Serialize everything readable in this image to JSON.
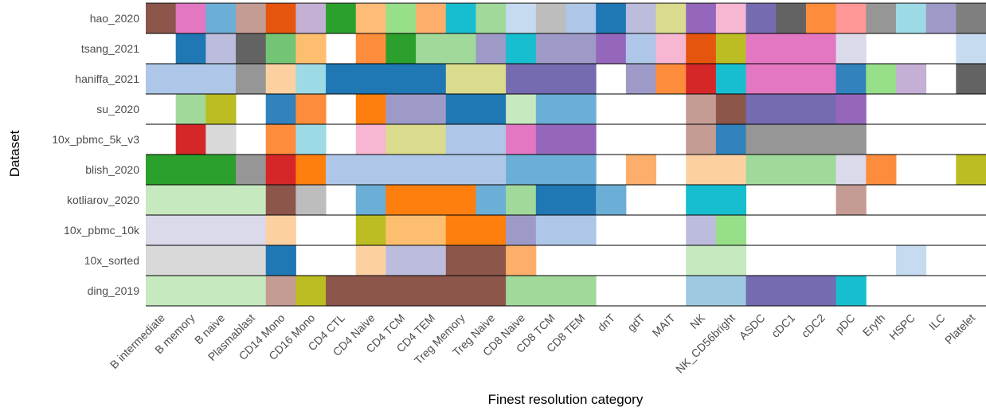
{
  "chart_data": {
    "type": "heatmap",
    "title": "",
    "xlabel": "Finest resolution category",
    "ylabel": "Dataset",
    "columns": [
      "B intermediate",
      "B memory",
      "B naive",
      "Plasmablast",
      "CD14 Mono",
      "CD16 Mono",
      "CD4 CTL",
      "CD4 Naive",
      "CD4 TCM",
      "CD4 TEM",
      "Treg Memory",
      "Treg Naive",
      "CD8 Naive",
      "CD8 TCM",
      "CD8 TEM",
      "dnT",
      "gdT",
      "MAIT",
      "NK",
      "NK_CD56bright",
      "ASDC",
      "cDC1",
      "cDC2",
      "pDC",
      "Eryth",
      "HSPC",
      "ILC",
      "Platelet"
    ],
    "rows": [
      "hao_2020",
      "tsang_2021",
      "haniffa_2021",
      "su_2020",
      "10x_pbmc_5k_v3",
      "blish_2020",
      "kotliarov_2020",
      "10x_pbmc_10k",
      "10x_sorted",
      "ding_2019"
    ],
    "cells": [
      [
        "#8c564b",
        "#e377c2",
        "#6baed6",
        "#c49c94",
        "#e6550d",
        "#c5b0d5",
        "#2ca02c",
        "#ffbb78",
        "#98df8a",
        "#fdae6b",
        "#17becf",
        "#a1d99b",
        "#c6dbef",
        "#bdbdbd",
        "#aec7e8",
        "#1f77b4",
        "#bcbddc",
        "#dbdb8d",
        "#9467bd",
        "#f7b6d2",
        "#756bb1",
        "#636363",
        "#fd8d3c",
        "#ff9896",
        "#969696",
        "#9edae5",
        "#9e9ac8",
        "#7f7f7f"
      ],
      [
        null,
        "#1f77b4",
        "#bcbddc",
        "#636363",
        "#74c476",
        "#fdbf6f",
        null,
        "#fd8d3c",
        "#2ca02c",
        "#a1d99b",
        "#a1d99b",
        "#9e9ac8",
        "#17becf",
        "#9e9ac8",
        "#9e9ac8",
        "#9467bd",
        "#aec7e8",
        "#f7b6d2",
        "#e6550d",
        "#bcbd22",
        "#e377c2",
        "#e377c2",
        "#e377c2",
        "#dadaeb",
        null,
        null,
        null,
        "#c6dbef"
      ],
      [
        "#aec7e8",
        "#aec7e8",
        "#aec7e8",
        "#969696",
        "#fdd0a2",
        "#9edae5",
        "#1f77b4",
        "#1f77b4",
        "#1f77b4",
        "#1f77b4",
        "#dbdb8d",
        "#dbdb8d",
        "#756bb1",
        "#756bb1",
        "#756bb1",
        null,
        "#9e9ac8",
        "#fd8d3c",
        "#d62728",
        "#17becf",
        "#e377c2",
        "#e377c2",
        "#e377c2",
        "#3182bd",
        "#98df8a",
        "#c5b0d5",
        null,
        "#636363"
      ],
      [
        null,
        "#a1d99b",
        "#bcbd22",
        null,
        "#3182bd",
        "#fd8d3c",
        null,
        "#ff7f0e",
        "#9e9ac8",
        "#9e9ac8",
        "#1f77b4",
        "#1f77b4",
        "#c7e9c0",
        "#6baed6",
        "#6baed6",
        null,
        null,
        null,
        "#c49c94",
        "#8c564b",
        "#756bb1",
        "#756bb1",
        "#756bb1",
        "#9467bd",
        null,
        null,
        null,
        null
      ],
      [
        null,
        "#d62728",
        "#d9d9d9",
        null,
        "#fd8d3c",
        "#9edae5",
        null,
        "#f7b6d2",
        "#dbdb8d",
        "#dbdb8d",
        "#aec7e8",
        "#aec7e8",
        "#e377c2",
        "#9467bd",
        "#9467bd",
        null,
        null,
        null,
        "#c49c94",
        "#3182bd",
        "#969696",
        "#969696",
        "#969696",
        "#969696",
        null,
        null,
        null,
        null
      ],
      [
        "#2ca02c",
        "#2ca02c",
        "#2ca02c",
        "#969696",
        "#d62728",
        "#ff7f0e",
        "#aec7e8",
        "#aec7e8",
        "#aec7e8",
        "#aec7e8",
        "#aec7e8",
        "#aec7e8",
        "#6baed6",
        "#6baed6",
        "#6baed6",
        null,
        "#fdae6b",
        null,
        "#fdd0a2",
        "#fdd0a2",
        "#a1d99b",
        "#a1d99b",
        "#a1d99b",
        "#dadaeb",
        "#fd8d3c",
        null,
        null,
        "#bcbd22"
      ],
      [
        "#c7e9c0",
        "#c7e9c0",
        "#c7e9c0",
        "#c7e9c0",
        "#8c564b",
        "#bdbdbd",
        null,
        "#6baed6",
        "#ff7f0e",
        "#ff7f0e",
        "#ff7f0e",
        "#6baed6",
        "#a1d99b",
        "#1f77b4",
        "#1f77b4",
        "#6baed6",
        null,
        null,
        "#17becf",
        "#17becf",
        null,
        null,
        null,
        "#c49c94",
        null,
        null,
        null,
        null
      ],
      [
        "#dadaeb",
        "#dadaeb",
        "#dadaeb",
        "#dadaeb",
        "#fdd0a2",
        null,
        null,
        "#bcbd22",
        "#fdbf6f",
        "#fdbf6f",
        "#ff7f0e",
        "#ff7f0e",
        "#9e9ac8",
        "#aec7e8",
        "#aec7e8",
        null,
        null,
        null,
        "#bcbddc",
        "#98df8a",
        null,
        null,
        null,
        null,
        null,
        null,
        null,
        null
      ],
      [
        "#d9d9d9",
        "#d9d9d9",
        "#d9d9d9",
        "#d9d9d9",
        "#1f77b4",
        null,
        null,
        "#fdd0a2",
        "#bcbddc",
        "#bcbddc",
        "#8c564b",
        "#8c564b",
        "#fdae6b",
        null,
        null,
        null,
        null,
        null,
        "#c7e9c0",
        "#c7e9c0",
        null,
        null,
        null,
        null,
        null,
        "#c6dbef",
        null,
        null
      ],
      [
        "#c7e9c0",
        "#c7e9c0",
        "#c7e9c0",
        "#c7e9c0",
        "#c49c94",
        "#bcbd22",
        "#8c564b",
        "#8c564b",
        "#8c564b",
        "#8c564b",
        "#8c564b",
        "#8c564b",
        "#a1d99b",
        "#a1d99b",
        "#a1d99b",
        null,
        null,
        null,
        "#9ecae1",
        "#9ecae1",
        "#756bb1",
        "#756bb1",
        "#756bb1",
        "#17becf",
        null,
        null,
        null,
        null
      ]
    ]
  }
}
